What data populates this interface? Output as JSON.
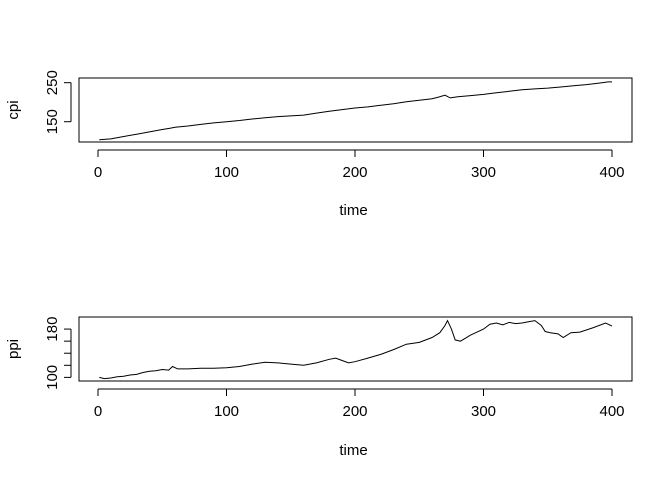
{
  "chart_data": [
    {
      "type": "line",
      "xlabel": "time",
      "ylabel": "cpi",
      "xlim": [
        0,
        400
      ],
      "ylim": [
        98,
        262
      ],
      "x_ticks": [
        0,
        100,
        200,
        300,
        400
      ],
      "y_ticks": [
        150,
        250
      ],
      "series": [
        {
          "x": [
            1,
            10,
            20,
            30,
            40,
            50,
            56,
            60,
            70,
            80,
            90,
            100,
            110,
            120,
            130,
            140,
            150,
            160,
            170,
            180,
            190,
            200,
            210,
            220,
            230,
            240,
            250,
            260,
            265,
            270,
            274,
            280,
            290,
            300,
            310,
            320,
            330,
            340,
            350,
            360,
            370,
            380,
            390,
            397,
            400
          ],
          "y": [
            104,
            106,
            112,
            118,
            124,
            130,
            133,
            136,
            139,
            143,
            147,
            150,
            153,
            157,
            160,
            163,
            165,
            167,
            172,
            177,
            181,
            185,
            188,
            192,
            196,
            201,
            205,
            209,
            213,
            218,
            211,
            214,
            217,
            220,
            224,
            228,
            232,
            234,
            236,
            239,
            242,
            245,
            249,
            252,
            252
          ]
        }
      ]
    },
    {
      "type": "line",
      "xlabel": "time",
      "ylabel": "ppi",
      "xlim": [
        0,
        400
      ],
      "ylim": [
        94,
        200
      ],
      "x_ticks": [
        0,
        100,
        200,
        300,
        400
      ],
      "y_ticks": [
        100,
        120,
        140,
        160,
        180
      ],
      "y_tick_labels_shown": [
        100,
        180
      ],
      "series": [
        {
          "x": [
            1,
            5,
            10,
            15,
            20,
            25,
            30,
            35,
            40,
            45,
            50,
            55,
            58,
            62,
            70,
            80,
            90,
            100,
            110,
            120,
            130,
            140,
            150,
            160,
            170,
            180,
            185,
            190,
            195,
            200,
            210,
            220,
            230,
            240,
            250,
            260,
            266,
            270,
            272,
            275,
            278,
            282,
            290,
            300,
            305,
            310,
            315,
            320,
            325,
            330,
            335,
            340,
            345,
            348,
            352,
            358,
            362,
            368,
            375,
            385,
            395,
            400
          ],
          "y": [
            100,
            98,
            99,
            101,
            102,
            104,
            105,
            108,
            110,
            111,
            113,
            112,
            118,
            114,
            114,
            115,
            115,
            116,
            118,
            122,
            125,
            124,
            122,
            120,
            124,
            130,
            132,
            128,
            124,
            126,
            132,
            138,
            146,
            155,
            158,
            166,
            174,
            186,
            194,
            180,
            162,
            160,
            170,
            180,
            188,
            190,
            187,
            191,
            189,
            190,
            192,
            194,
            186,
            176,
            174,
            172,
            166,
            174,
            175,
            182,
            190,
            185
          ]
        }
      ]
    }
  ]
}
